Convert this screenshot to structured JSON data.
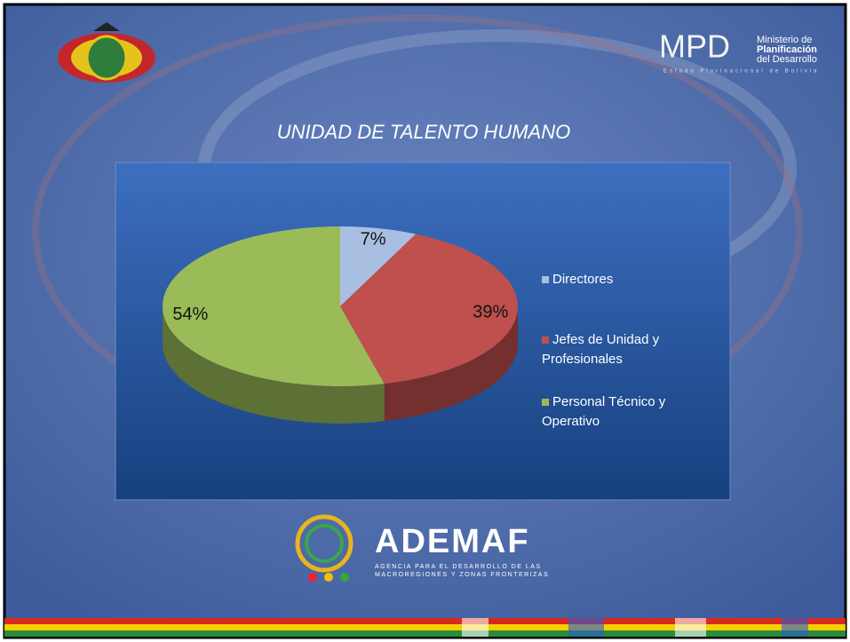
{
  "chart_data": {
    "type": "pie",
    "title": "UNIDAD DE TALENTO HUMANO",
    "categories": [
      "Directores",
      "Jefes de Unidad y Profesionales",
      "Personal Técnico y Operativo"
    ],
    "values": [
      7,
      39,
      54
    ],
    "value_labels": [
      "7%",
      "39%",
      "54%"
    ],
    "colors": [
      "#a9bfe2",
      "#c0504d",
      "#9bbb59"
    ],
    "legend": "right"
  },
  "logos": {
    "mpd": "MPD",
    "ministry": [
      "Ministerio de",
      "Planificación",
      "del Desarrollo"
    ],
    "state": "Estado Plurinacional de Bolivia",
    "ademaf": "ADEMAF",
    "ademaf_sub": [
      "AGENCIA PARA EL DESARROLLO DE LAS",
      "MACROREGIONES Y ZONAS FRONTERIZAS"
    ]
  }
}
